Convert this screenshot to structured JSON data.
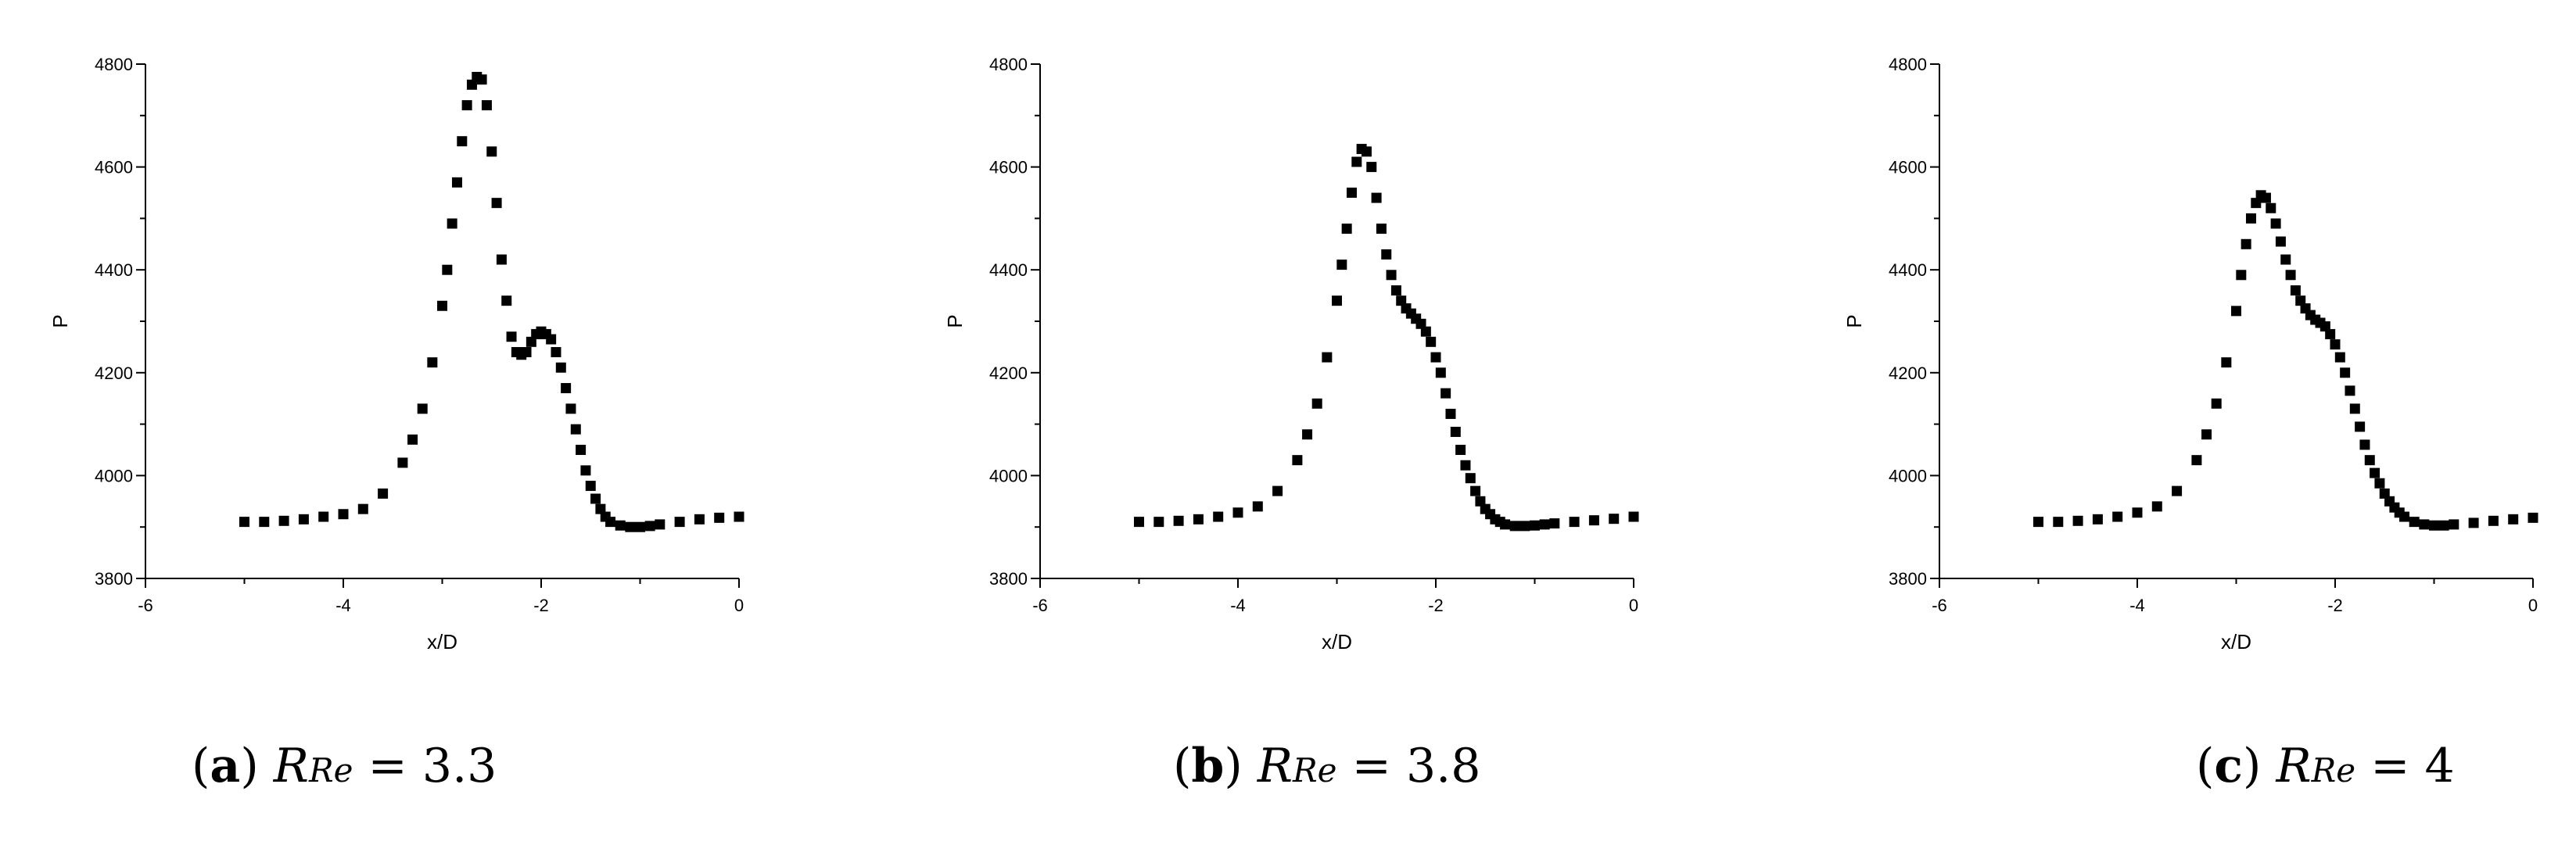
{
  "chart_data": [
    {
      "type": "scatter",
      "panel": "(a)",
      "xlabel": "x/D",
      "ylabel": "P",
      "xlim": [
        -6,
        0
      ],
      "ylim": [
        3800,
        4800
      ],
      "xticks": [
        -6,
        -4,
        -2,
        0
      ],
      "yticks": [
        3800,
        4000,
        4200,
        4400,
        4600,
        4800
      ],
      "marker": "square",
      "color": "#000000",
      "grid": false,
      "caption": {
        "label": "a",
        "symbol": "R",
        "subscript": "Re",
        "value": "= 3.3"
      },
      "x": [
        -5.0,
        -4.8,
        -4.6,
        -4.4,
        -4.2,
        -4.0,
        -3.8,
        -3.6,
        -3.4,
        -3.3,
        -3.2,
        -3.1,
        -3.0,
        -2.95,
        -2.9,
        -2.85,
        -2.8,
        -2.75,
        -2.7,
        -2.65,
        -2.6,
        -2.55,
        -2.5,
        -2.45,
        -2.4,
        -2.35,
        -2.3,
        -2.25,
        -2.2,
        -2.15,
        -2.1,
        -2.05,
        -2.0,
        -1.95,
        -1.9,
        -1.85,
        -1.8,
        -1.75,
        -1.7,
        -1.65,
        -1.6,
        -1.55,
        -1.5,
        -1.45,
        -1.4,
        -1.35,
        -1.3,
        -1.2,
        -1.1,
        -1.0,
        -0.9,
        -0.8,
        -0.6,
        -0.4,
        -0.2,
        0.0
      ],
      "y": [
        3910,
        3910,
        3912,
        3915,
        3920,
        3925,
        3935,
        3965,
        4025,
        4070,
        4130,
        4220,
        4330,
        4400,
        4490,
        4570,
        4650,
        4720,
        4760,
        4775,
        4770,
        4720,
        4630,
        4530,
        4420,
        4340,
        4270,
        4240,
        4235,
        4240,
        4260,
        4275,
        4280,
        4275,
        4265,
        4240,
        4210,
        4170,
        4130,
        4090,
        4050,
        4010,
        3980,
        3955,
        3935,
        3920,
        3910,
        3903,
        3900,
        3900,
        3902,
        3905,
        3910,
        3915,
        3918,
        3920
      ]
    },
    {
      "type": "scatter",
      "panel": "(b)",
      "xlabel": "x/D",
      "ylabel": "P",
      "xlim": [
        -6,
        0
      ],
      "ylim": [
        3800,
        4800
      ],
      "xticks": [
        -6,
        -4,
        -2,
        0
      ],
      "yticks": [
        3800,
        4000,
        4200,
        4400,
        4600,
        4800
      ],
      "marker": "square",
      "color": "#000000",
      "grid": false,
      "caption": {
        "label": "b",
        "symbol": "R",
        "subscript": "Re",
        "value": "= 3.8"
      },
      "x": [
        -5.0,
        -4.8,
        -4.6,
        -4.4,
        -4.2,
        -4.0,
        -3.8,
        -3.6,
        -3.4,
        -3.3,
        -3.2,
        -3.1,
        -3.0,
        -2.95,
        -2.9,
        -2.85,
        -2.8,
        -2.75,
        -2.7,
        -2.65,
        -2.6,
        -2.55,
        -2.5,
        -2.45,
        -2.4,
        -2.35,
        -2.3,
        -2.25,
        -2.2,
        -2.15,
        -2.1,
        -2.05,
        -2.0,
        -1.95,
        -1.9,
        -1.85,
        -1.8,
        -1.75,
        -1.7,
        -1.65,
        -1.6,
        -1.55,
        -1.5,
        -1.45,
        -1.4,
        -1.35,
        -1.3,
        -1.2,
        -1.1,
        -1.0,
        -0.9,
        -0.8,
        -0.6,
        -0.4,
        -0.2,
        0.0
      ],
      "y": [
        3910,
        3910,
        3912,
        3915,
        3920,
        3928,
        3940,
        3970,
        4030,
        4080,
        4140,
        4230,
        4340,
        4410,
        4480,
        4550,
        4610,
        4635,
        4630,
        4600,
        4540,
        4480,
        4430,
        4390,
        4360,
        4340,
        4325,
        4315,
        4305,
        4295,
        4280,
        4260,
        4230,
        4200,
        4160,
        4120,
        4085,
        4050,
        4020,
        3995,
        3970,
        3950,
        3935,
        3925,
        3915,
        3910,
        3905,
        3902,
        3902,
        3903,
        3905,
        3907,
        3910,
        3913,
        3916,
        3920
      ]
    },
    {
      "type": "scatter",
      "panel": "(c)",
      "xlabel": "x/D",
      "ylabel": "P",
      "xlim": [
        -6,
        0
      ],
      "ylim": [
        3800,
        4800
      ],
      "xticks": [
        -6,
        -4,
        -2,
        0
      ],
      "yticks": [
        3800,
        4000,
        4200,
        4400,
        4600,
        4800
      ],
      "marker": "square",
      "color": "#000000",
      "grid": false,
      "caption": {
        "label": "c",
        "symbol": "R",
        "subscript": "Re",
        "value": "= 4"
      },
      "x": [
        -5.0,
        -4.8,
        -4.6,
        -4.4,
        -4.2,
        -4.0,
        -3.8,
        -3.6,
        -3.4,
        -3.3,
        -3.2,
        -3.1,
        -3.0,
        -2.95,
        -2.9,
        -2.85,
        -2.8,
        -2.75,
        -2.7,
        -2.65,
        -2.6,
        -2.55,
        -2.5,
        -2.45,
        -2.4,
        -2.35,
        -2.3,
        -2.25,
        -2.2,
        -2.15,
        -2.1,
        -2.05,
        -2.0,
        -1.95,
        -1.9,
        -1.85,
        -1.8,
        -1.75,
        -1.7,
        -1.65,
        -1.6,
        -1.55,
        -1.5,
        -1.45,
        -1.4,
        -1.35,
        -1.3,
        -1.2,
        -1.1,
        -1.0,
        -0.9,
        -0.8,
        -0.6,
        -0.4,
        -0.2,
        0.0
      ],
      "y": [
        3910,
        3910,
        3912,
        3915,
        3920,
        3928,
        3940,
        3970,
        4030,
        4080,
        4140,
        4220,
        4320,
        4390,
        4450,
        4500,
        4530,
        4545,
        4540,
        4520,
        4490,
        4455,
        4420,
        4390,
        4360,
        4340,
        4325,
        4312,
        4303,
        4297,
        4290,
        4275,
        4255,
        4230,
        4200,
        4165,
        4130,
        4095,
        4060,
        4030,
        4005,
        3985,
        3965,
        3950,
        3938,
        3928,
        3920,
        3910,
        3905,
        3903,
        3903,
        3905,
        3908,
        3912,
        3915,
        3918
      ]
    }
  ]
}
